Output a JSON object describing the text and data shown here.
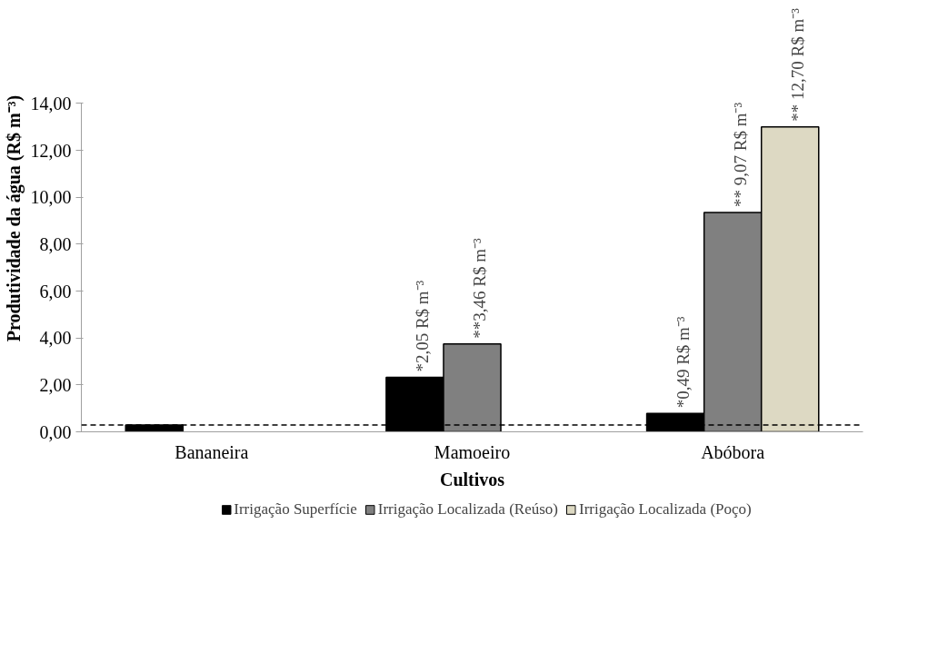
{
  "chart_data": {
    "type": "bar",
    "xlabel": "Cultivos",
    "ylabel": "Produtividade da água (R$ m⁻³)",
    "categories": [
      "Bananeira",
      "Mamoeiro",
      "Abóbora"
    ],
    "series": [
      {
        "name": "Irrigação Superfície",
        "color": "#000000",
        "values": [
          0.29,
          2.32,
          0.78
        ]
      },
      {
        "name": "Irrigação Localizada (Reúso)",
        "color": "#808080",
        "values": [
          null,
          3.75,
          9.35
        ]
      },
      {
        "name": "Irrigação Localizada (Poço)",
        "color": "#ddd9c3",
        "values": [
          null,
          null,
          13.0
        ]
      }
    ],
    "annotations": [
      "*2,05  R$ m⁻³",
      "**3,46 R$ m⁻³",
      "*0,49  R$ m⁻³",
      "** 9,07 R$ m⁻³",
      "** 12,70 R$ m⁻³"
    ],
    "ylim": [
      0,
      14
    ],
    "yticks": [
      {
        "value": 0,
        "label": "0,00"
      },
      {
        "value": 2,
        "label": "2,00"
      },
      {
        "value": 4,
        "label": "4,00"
      },
      {
        "value": 6,
        "label": "6,00"
      },
      {
        "value": 8,
        "label": "8,00"
      },
      {
        "value": 10,
        "label": "10,00"
      },
      {
        "value": 12,
        "label": "12,00"
      },
      {
        "value": 14,
        "label": "14,00"
      }
    ],
    "ref_lines": [
      {
        "axis": "y",
        "value": 0.29,
        "color": "#000000",
        "line_style": "dashed"
      }
    ],
    "legend": "bottom"
  }
}
